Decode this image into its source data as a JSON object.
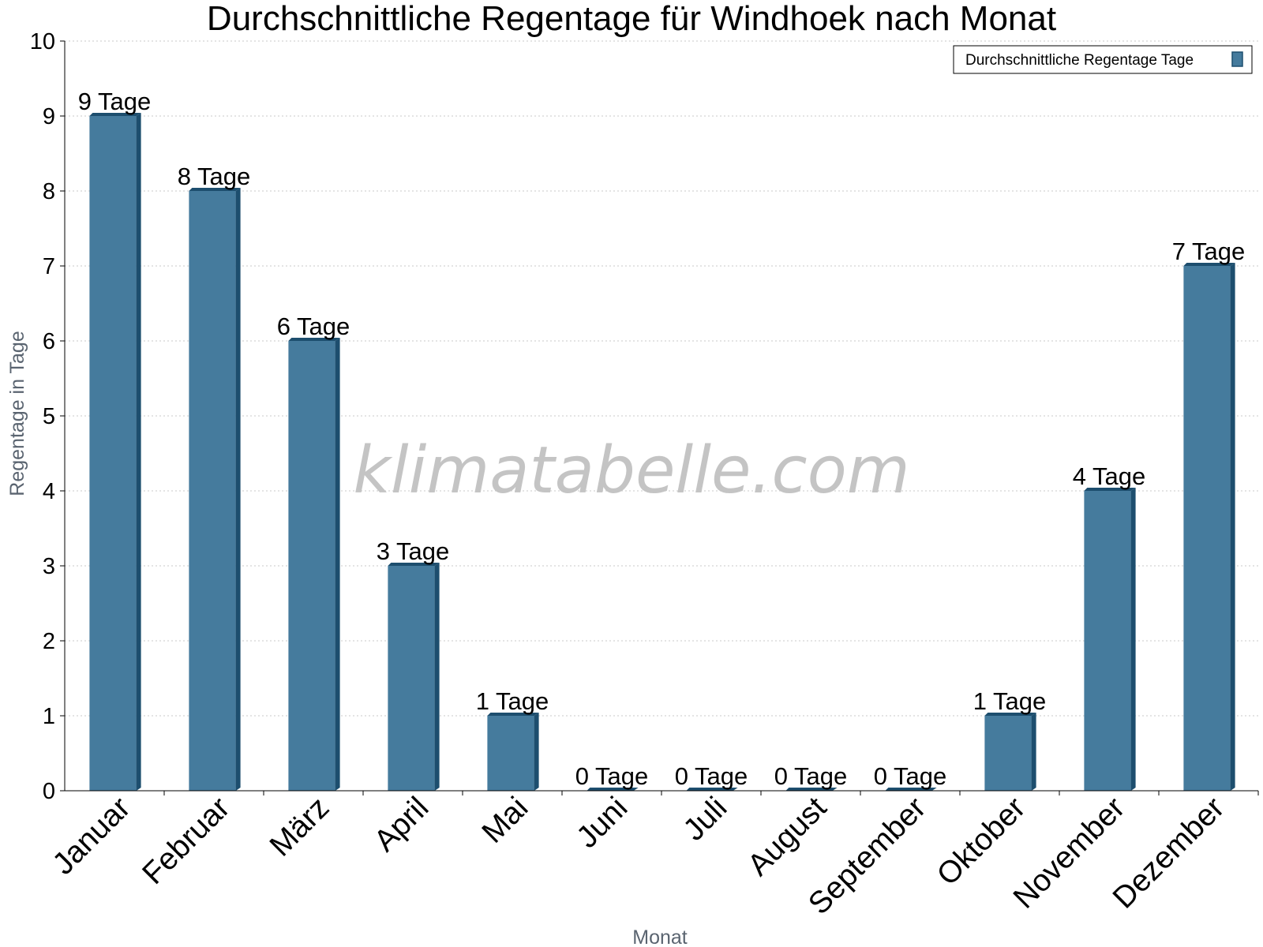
{
  "chart_data": {
    "type": "bar",
    "title": "Durchschnittliche Regentage für Windhoek nach Monat",
    "xlabel": "Monat",
    "ylabel": "Regentage in Tage",
    "ylim": [
      0,
      10
    ],
    "yticks": [
      "0",
      "1",
      "2",
      "3",
      "4",
      "5",
      "6",
      "7",
      "8",
      "9",
      "10"
    ],
    "grid": true,
    "legend_position": "top-right",
    "categories": [
      "Januar",
      "Februar",
      "März",
      "April",
      "Mai",
      "Juni",
      "Juli",
      "August",
      "September",
      "Oktober",
      "November",
      "Dezember"
    ],
    "series": [
      {
        "name": "Durchschnittliche Regentage Tage",
        "values": [
          9,
          8,
          6,
          3,
          1,
          0,
          0,
          0,
          0,
          1,
          4,
          7
        ],
        "labels": [
          "9 Tage",
          "8 Tage",
          "6 Tage",
          "3 Tage",
          "1 Tage",
          "0 Tage",
          "0 Tage",
          "0 Tage",
          "0 Tage",
          "1 Tage",
          "4 Tage",
          "7 Tage"
        ],
        "color": "#457b9d",
        "side_color": "#1d4e6e"
      }
    ]
  },
  "watermark": "klimatabelle.com"
}
